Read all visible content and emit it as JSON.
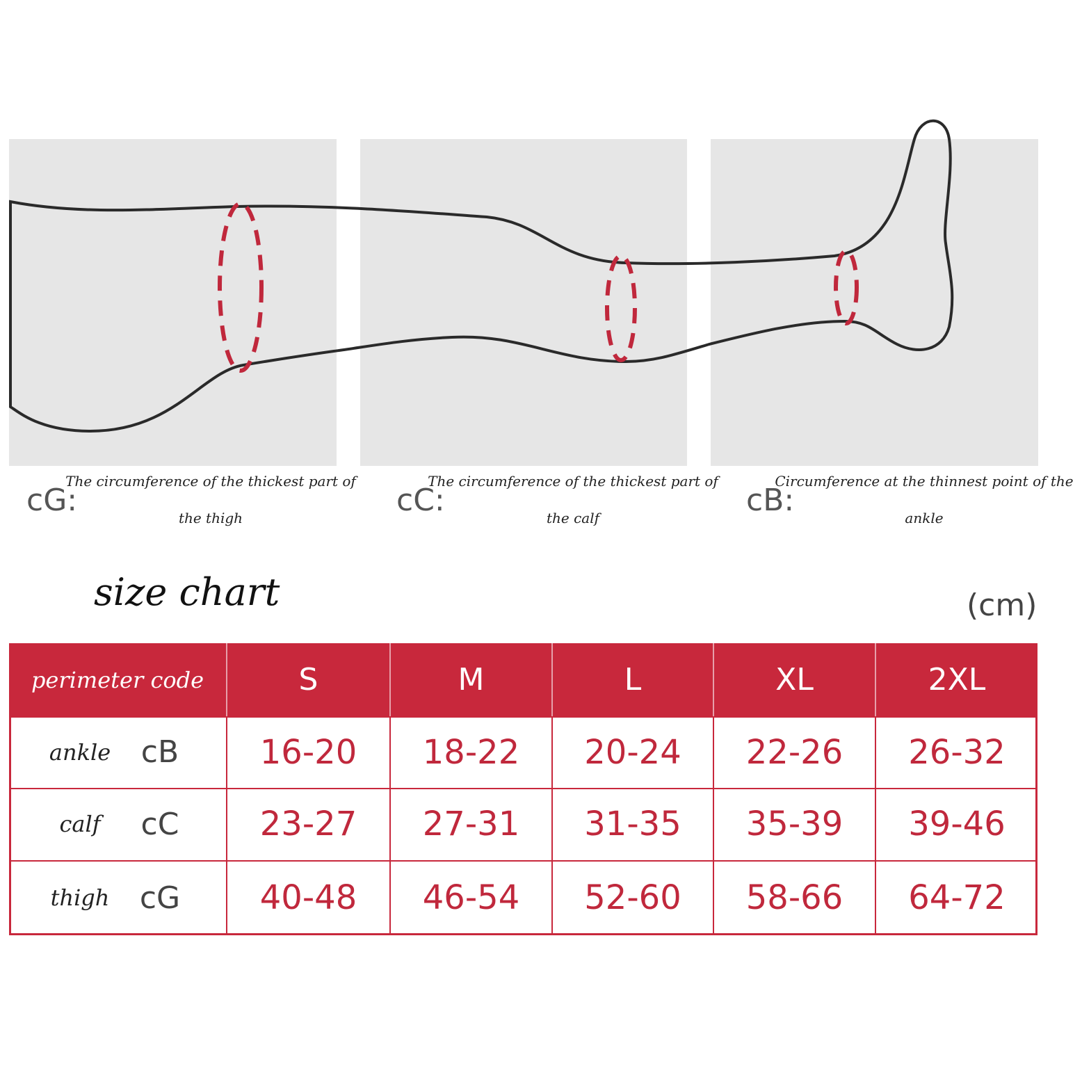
{
  "panels": [
    {
      "code": "cG:",
      "caption_lines": [
        "The circumference of the thickest part of",
        "the thigh"
      ]
    },
    {
      "code": "cC:",
      "caption_lines": [
        "The circumference of the thickest part of",
        "the calf"
      ]
    },
    {
      "code": "cB:",
      "caption_lines": [
        "Circumference at the thinnest point of the",
        "ankle"
      ]
    }
  ],
  "title": "size chart",
  "unit": "(cm)",
  "table": {
    "header": [
      "perimeter code",
      "S",
      "M",
      "L",
      "XL",
      "2XL"
    ],
    "rows": [
      {
        "name": "ankle",
        "code": "cB",
        "values": [
          "16-20",
          "18-22",
          "20-24",
          "22-26",
          "26-32"
        ]
      },
      {
        "name": "calf",
        "code": "cC",
        "values": [
          "23-27",
          "27-31",
          "31-35",
          "35-39",
          "39-46"
        ]
      },
      {
        "name": "thigh",
        "code": "cG",
        "values": [
          "40-48",
          "46-54",
          "52-60",
          "58-66",
          "64-72"
        ]
      }
    ]
  }
}
